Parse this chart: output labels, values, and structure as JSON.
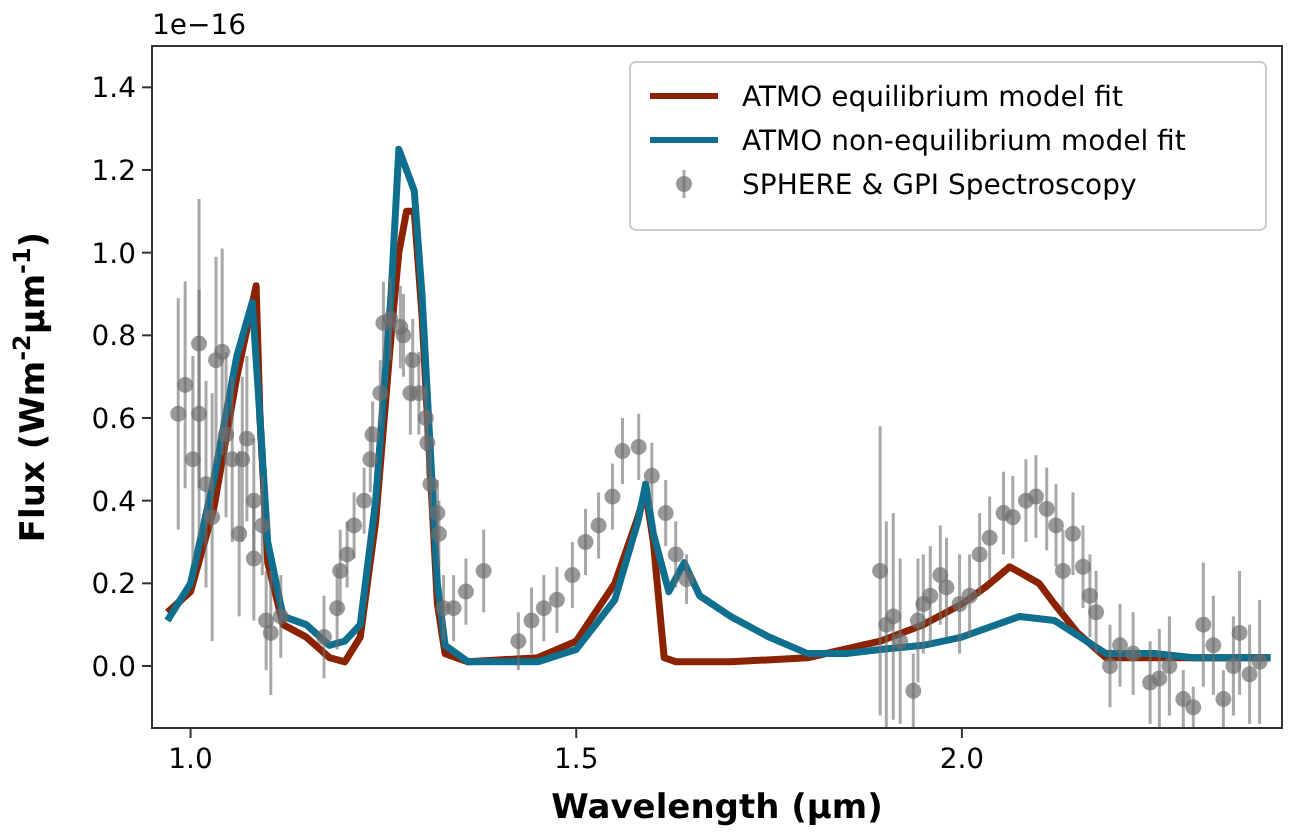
{
  "chart_data": {
    "type": "line",
    "xlabel": "Wavelength (μm)",
    "ylabel": "Flux (Wm$^{-2}$μm$^{-1}$)",
    "annotations": [
      "1e−16"
    ],
    "xlim": [
      0.95,
      2.415
    ],
    "xticks": [
      {
        "value": 1.0,
        "label": "1.0"
      },
      {
        "value": 1.5,
        "label": "1.5"
      },
      {
        "value": 2.0,
        "label": "2.0"
      }
    ],
    "ylim": [
      -0.15,
      1.5
    ],
    "yticks": [
      {
        "value": 0,
        "label": "0.0"
      },
      {
        "value": 0.2,
        "label": "0.2"
      },
      {
        "value": 0.4,
        "label": "0.4"
      },
      {
        "value": 0.6,
        "label": "0.6"
      },
      {
        "value": 0.8,
        "label": "0.8"
      },
      {
        "value": 1.0,
        "label": "1.0"
      },
      {
        "value": 1.2,
        "label": "1.2"
      },
      {
        "value": 1.4,
        "label": "1.4"
      }
    ],
    "grid": false,
    "legend": "top right",
    "line_style": "solid",
    "series": [
      {
        "name": "ATMO equilibrium model fit",
        "color": "#8b2200",
        "x": [
          0.97,
          1.0,
          1.03,
          1.06,
          1.085,
          1.09,
          1.1,
          1.12,
          1.15,
          1.18,
          1.2,
          1.22,
          1.24,
          1.26,
          1.27,
          1.28,
          1.29,
          1.3,
          1.31,
          1.32,
          1.33,
          1.36,
          1.45,
          1.5,
          1.55,
          1.58,
          1.59,
          1.6,
          1.614,
          1.63,
          1.7,
          1.8,
          1.894,
          1.95,
          2.0,
          2.03,
          2.062,
          2.1,
          2.12,
          2.15,
          2.187,
          2.25,
          2.3,
          2.4
        ],
        "values": [
          0.13,
          0.18,
          0.38,
          0.7,
          0.92,
          0.6,
          0.25,
          0.1,
          0.07,
          0.02,
          0.01,
          0.07,
          0.35,
          0.8,
          1.0,
          1.1,
          1.1,
          0.85,
          0.5,
          0.15,
          0.03,
          0.01,
          0.02,
          0.06,
          0.2,
          0.36,
          0.42,
          0.3,
          0.02,
          0.01,
          0.01,
          0.02,
          0.06,
          0.1,
          0.15,
          0.19,
          0.24,
          0.2,
          0.15,
          0.08,
          0.02,
          0.02,
          0.02,
          0.02
        ]
      },
      {
        "name": "ATMO non-equilibrium model fit",
        "color": "#0e6f8e",
        "x": [
          0.97,
          1.0,
          1.03,
          1.06,
          1.08,
          1.09,
          1.1,
          1.12,
          1.15,
          1.18,
          1.2,
          1.22,
          1.24,
          1.26,
          1.27,
          1.28,
          1.29,
          1.3,
          1.31,
          1.32,
          1.33,
          1.36,
          1.45,
          1.5,
          1.55,
          1.58,
          1.59,
          1.6,
          1.62,
          1.64,
          1.66,
          1.7,
          1.75,
          1.8,
          1.85,
          1.894,
          1.95,
          2.0,
          2.075,
          2.12,
          2.187,
          2.25,
          2.3,
          2.4
        ],
        "values": [
          0.11,
          0.2,
          0.45,
          0.75,
          0.88,
          0.6,
          0.3,
          0.12,
          0.1,
          0.05,
          0.06,
          0.1,
          0.4,
          0.9,
          1.25,
          1.2,
          1.15,
          0.9,
          0.55,
          0.2,
          0.05,
          0.01,
          0.01,
          0.04,
          0.16,
          0.35,
          0.44,
          0.32,
          0.18,
          0.25,
          0.17,
          0.12,
          0.07,
          0.03,
          0.03,
          0.04,
          0.05,
          0.07,
          0.12,
          0.11,
          0.03,
          0.03,
          0.02,
          0.02
        ]
      },
      {
        "name": "SPHERE & GPI Spectroscopy",
        "type": "scatter",
        "marker": "circle",
        "color": "#6e6e6e",
        "x": [
          0.984,
          0.993,
          1.003,
          1.011,
          1.011,
          1.02,
          1.028,
          1.033,
          1.041,
          1.046,
          1.054,
          1.063,
          1.067,
          1.073,
          1.082,
          1.082,
          1.093,
          1.098,
          1.104,
          1.117,
          1.173,
          1.19,
          1.194,
          1.203,
          1.212,
          1.225,
          1.233,
          1.236,
          1.246,
          1.25,
          1.259,
          1.272,
          1.276,
          1.285,
          1.288,
          1.296,
          1.305,
          1.307,
          1.311,
          1.32,
          1.322,
          1.328,
          1.341,
          1.357,
          1.38,
          1.425,
          1.442,
          1.458,
          1.475,
          1.495,
          1.512,
          1.529,
          1.547,
          1.56,
          1.581,
          1.598,
          1.616,
          1.629,
          1.643,
          1.894,
          1.902,
          1.911,
          1.92,
          1.937,
          1.943,
          1.95,
          1.959,
          1.972,
          1.98,
          1.997,
          2.01,
          2.023,
          2.036,
          2.054,
          2.066,
          2.083,
          2.096,
          2.11,
          2.122,
          2.131,
          2.144,
          2.157,
          2.166,
          2.174,
          2.192,
          2.205,
          2.222,
          2.244,
          2.256,
          2.269,
          2.287,
          2.3,
          2.313,
          2.326,
          2.339,
          2.352,
          2.36,
          2.373,
          2.386
        ],
        "values": [
          0.61,
          0.68,
          0.5,
          0.78,
          0.61,
          0.44,
          0.36,
          0.74,
          0.76,
          0.56,
          0.5,
          0.32,
          0.5,
          0.55,
          0.4,
          0.26,
          0.34,
          0.11,
          0.08,
          0.12,
          0.07,
          0.14,
          0.23,
          0.27,
          0.34,
          0.4,
          0.5,
          0.56,
          0.66,
          0.83,
          0.84,
          0.82,
          0.8,
          0.66,
          0.74,
          0.66,
          0.6,
          0.54,
          0.44,
          0.37,
          0.32,
          0.14,
          0.14,
          0.18,
          0.23,
          0.06,
          0.11,
          0.14,
          0.16,
          0.22,
          0.3,
          0.34,
          0.41,
          0.52,
          0.53,
          0.46,
          0.37,
          0.27,
          0.21,
          0.23,
          0.1,
          0.12,
          0.06,
          -0.06,
          0.11,
          0.15,
          0.17,
          0.22,
          0.19,
          0.15,
          0.17,
          0.27,
          0.31,
          0.37,
          0.36,
          0.4,
          0.41,
          0.38,
          0.34,
          0.23,
          0.32,
          0.24,
          0.17,
          0.13,
          0.0,
          0.05,
          0.03,
          -0.04,
          -0.03,
          0.0,
          -0.08,
          -0.1,
          0.1,
          0.05,
          -0.08,
          0.0,
          0.08,
          -0.02,
          0.01
        ],
        "errors": [
          0.28,
          0.25,
          0.25,
          0.35,
          0.3,
          0.25,
          0.3,
          0.25,
          0.25,
          0.2,
          0.2,
          0.2,
          0.2,
          0.2,
          0.15,
          0.15,
          0.12,
          0.12,
          0.15,
          0.1,
          0.1,
          0.1,
          0.1,
          0.08,
          0.08,
          0.08,
          0.08,
          0.08,
          0.08,
          0.1,
          0.1,
          0.1,
          0.1,
          0.1,
          0.1,
          0.1,
          0.08,
          0.08,
          0.08,
          0.08,
          0.08,
          0.08,
          0.08,
          0.08,
          0.1,
          0.07,
          0.08,
          0.08,
          0.08,
          0.08,
          0.08,
          0.08,
          0.08,
          0.08,
          0.08,
          0.08,
          0.08,
          0.08,
          0.06,
          0.35,
          0.25,
          0.25,
          0.2,
          0.09,
          0.15,
          0.12,
          0.12,
          0.12,
          0.12,
          0.12,
          0.1,
          0.1,
          0.1,
          0.1,
          0.1,
          0.1,
          0.1,
          0.1,
          0.1,
          0.1,
          0.1,
          0.1,
          0.1,
          0.1,
          0.1,
          0.1,
          0.1,
          0.1,
          0.12,
          0.12,
          0.07,
          0.05,
          0.15,
          0.12,
          0.07,
          0.12,
          0.15,
          0.12,
          0.15
        ]
      }
    ]
  }
}
